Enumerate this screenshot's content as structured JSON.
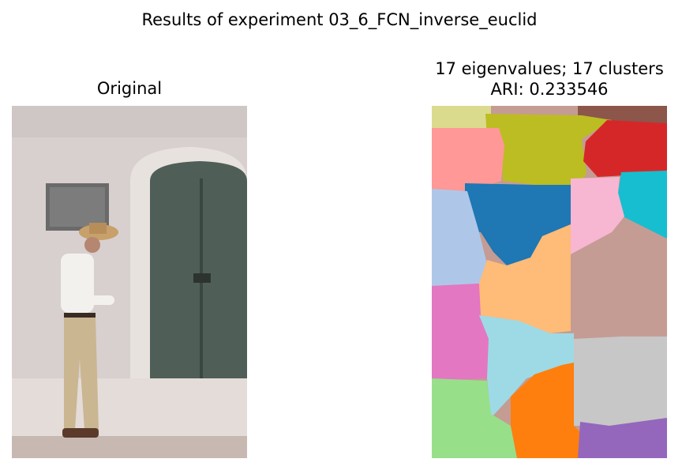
{
  "figure": {
    "suptitle": "Results of experiment 03_6_FCN_inverse_euclid"
  },
  "left_panel": {
    "title": "Original",
    "photo_colors": {
      "wall": "#d8cfcf",
      "door": "#4a5a52",
      "arch": "#e8e2df",
      "plaque": "#6a6a6a",
      "shirt": "#f3f1ee",
      "pants": "#cbb692",
      "hat": "#c8a06a",
      "ground": "#c9b9b2"
    }
  },
  "right_panel": {
    "title_line1": "17 eigenvalues; 17 clusters",
    "title_line2": "ARI: 0.233546",
    "cluster_colors": {
      "c0": "#dbdb8d",
      "c1": "#bcbd22",
      "c2": "#8c564b",
      "c3": "#d62728",
      "c4": "#ff9896",
      "c5": "#1f77b4",
      "c6": "#17becf",
      "c7": "#f7b6d2",
      "c8": "#aec7e8",
      "c9": "#ffbb78",
      "c10": "#c49c94",
      "c11": "#e377c2",
      "c12": "#9edae5",
      "c13": "#c7c7c7",
      "c14": "#98df8a",
      "c15": "#ff7f0e",
      "c16": "#9467bd"
    }
  }
}
